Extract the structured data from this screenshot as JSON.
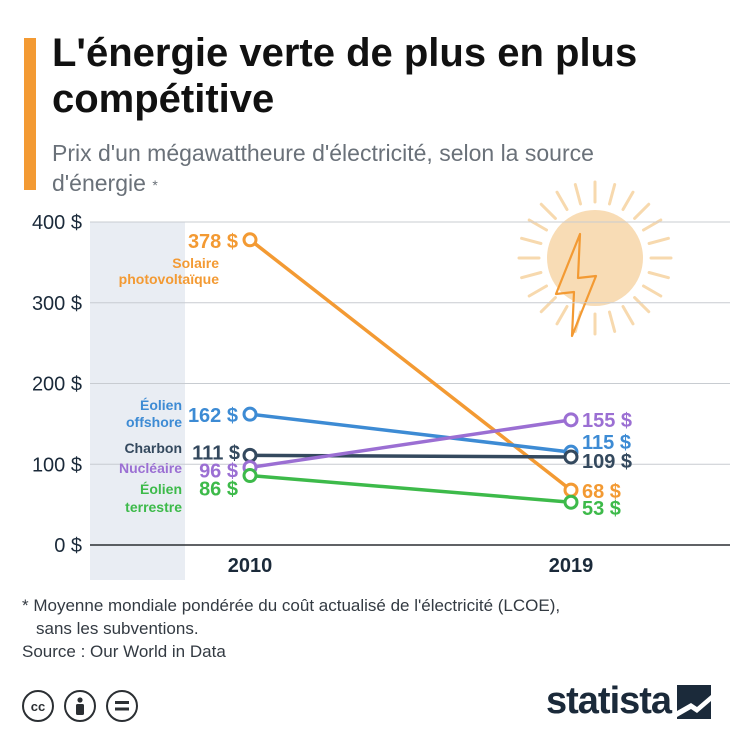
{
  "header": {
    "title": "L'énergie verte de plus en plus compétitive",
    "subtitle": "Prix d'un mégawattheure d'électricité, selon la source d'énergie",
    "subtitle_marker": "*"
  },
  "chart_data": {
    "type": "line",
    "x": [
      "2010",
      "2019"
    ],
    "yticks": [
      "0 $",
      "100 $",
      "200 $",
      "300 $",
      "400 $"
    ],
    "ylim": [
      0,
      400
    ],
    "grid": true,
    "series": [
      {
        "name": "Solaire photovoltaïque",
        "label_lines": [
          "Solaire",
          "photovoltaïque"
        ],
        "values": [
          378,
          68
        ],
        "labels": [
          "378 $",
          "68 $"
        ],
        "color": "#f39a33"
      },
      {
        "name": "Éolien offshore",
        "label_lines": [
          "Éolien",
          "offshore"
        ],
        "values": [
          162,
          115
        ],
        "labels": [
          "162 $",
          "115 $"
        ],
        "color": "#3d8bd4"
      },
      {
        "name": "Charbon",
        "label_lines": [
          "Charbon"
        ],
        "values": [
          111,
          109
        ],
        "labels": [
          "111 $",
          "109 $"
        ],
        "color": "#34495e"
      },
      {
        "name": "Nucléaire",
        "label_lines": [
          "Nucléaire"
        ],
        "values": [
          96,
          155
        ],
        "labels": [
          "96 $",
          "155 $"
        ],
        "color": "#9b6fd3"
      },
      {
        "name": "Éolien terrestre",
        "label_lines": [
          "Éolien",
          "terrestre"
        ],
        "values": [
          86,
          53
        ],
        "labels": [
          "86 $",
          "53 $"
        ],
        "color": "#3dba4a"
      }
    ],
    "highlight_band": "2010"
  },
  "footer": {
    "note_line1": "* Moyenne mondiale pondérée du coût actualisé de l'électricité (LCOE),",
    "note_line2": "sans les subventions.",
    "source": "Source : Our World in Data",
    "license_icons": [
      "cc-icon",
      "attribution-icon",
      "no-derivatives-icon"
    ],
    "brand": "statista"
  }
}
